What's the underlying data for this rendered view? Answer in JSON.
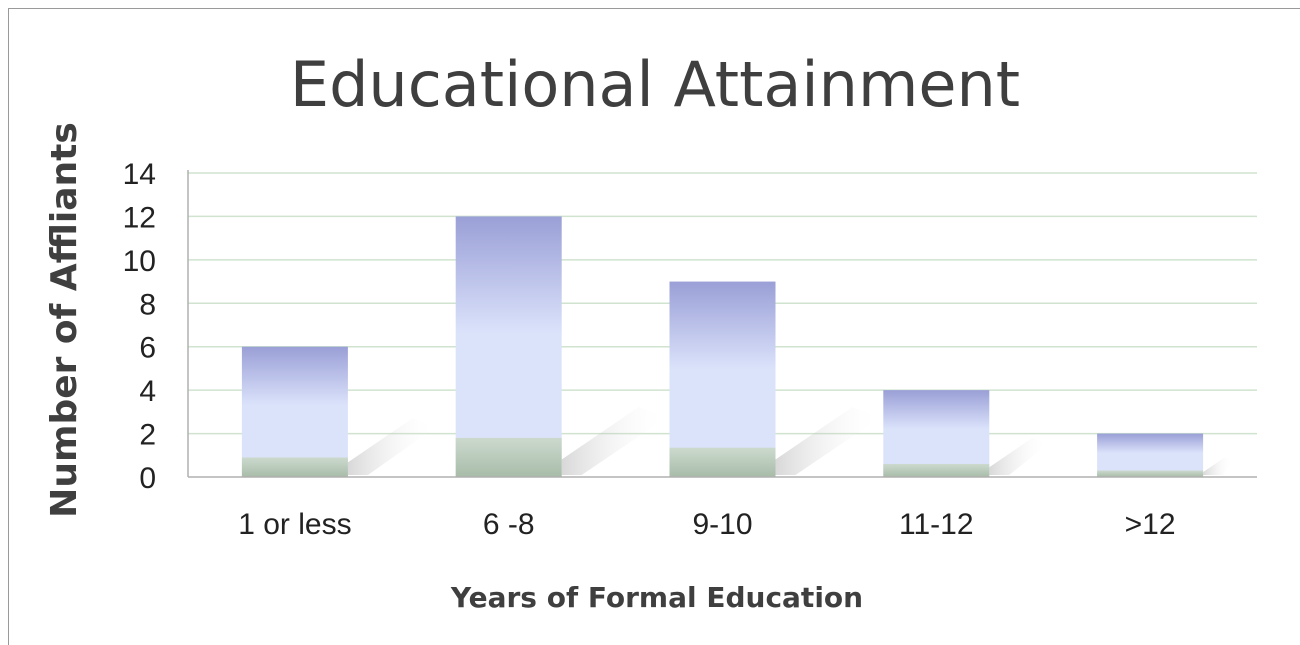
{
  "chart_data": {
    "type": "bar",
    "title": "Educational Attainment",
    "xlabel": "Years of Formal Education",
    "ylabel": "Number of Affliants",
    "categories": [
      "1 or less",
      "6 -8",
      "9-10",
      "11-12",
      ">12"
    ],
    "values": [
      6,
      12,
      9,
      4,
      2
    ],
    "ylim": [
      0,
      14
    ],
    "yticks": [
      "0",
      "2",
      "4",
      "6",
      "8",
      "10",
      "12",
      "14"
    ],
    "grid": true,
    "legend": "none",
    "colors": {
      "bar_top": "#9a9fd6",
      "bar_mid": "#dbe3fb",
      "bar_base": "#9fb59a",
      "grid": "#cfe3cf",
      "axis": "#b0b0b0"
    }
  }
}
